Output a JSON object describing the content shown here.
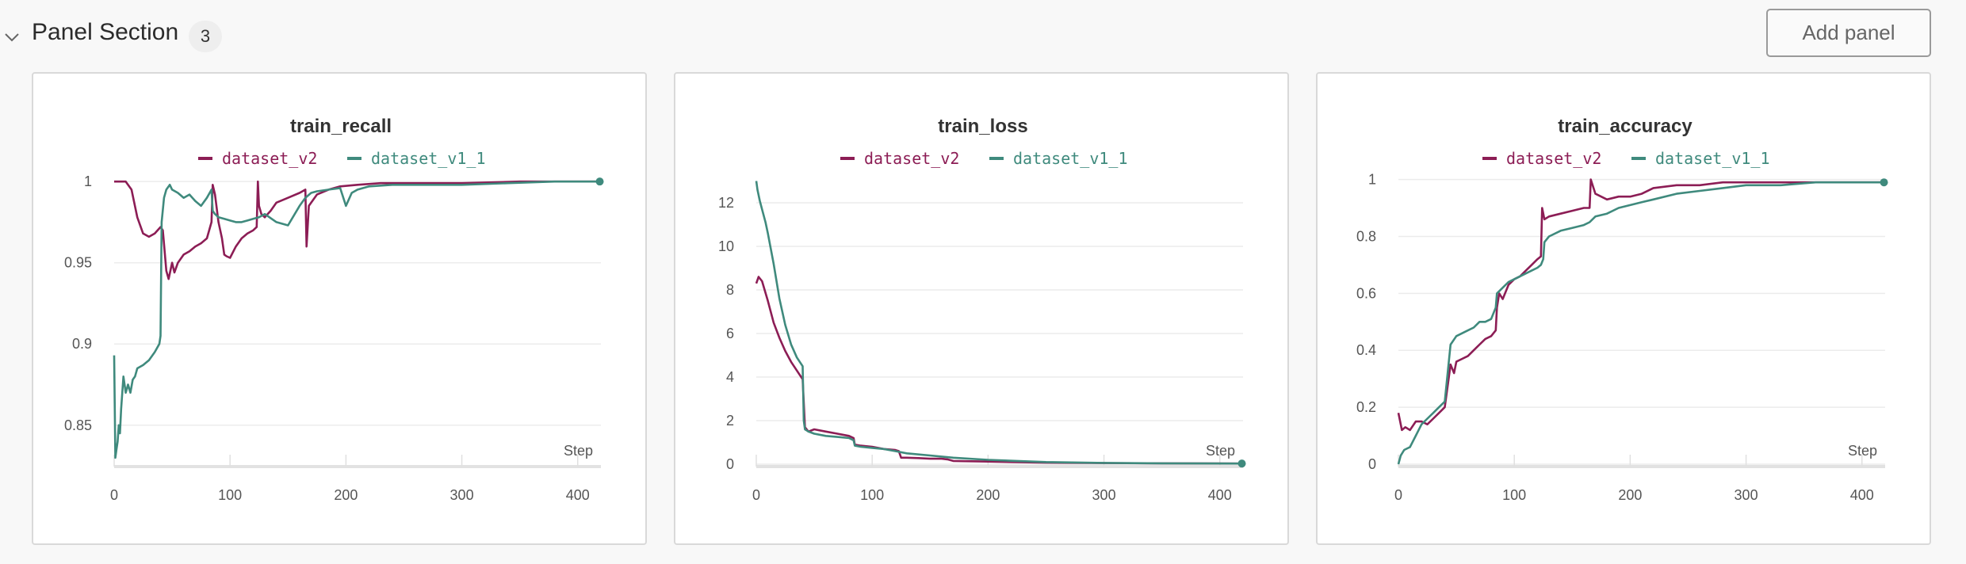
{
  "section": {
    "title": "Panel Section",
    "count": "3",
    "add_panel_label": "Add panel"
  },
  "colors": {
    "dataset_v2": "#8c1d55",
    "dataset_v1_1": "#3f8a7d"
  },
  "chart_data": [
    {
      "type": "line",
      "title": "train_recall",
      "xlabel": "Step",
      "xlim": [
        0,
        420
      ],
      "ylim": [
        0.826,
        1.003
      ],
      "x_ticks": [
        0,
        100,
        200,
        300,
        400
      ],
      "y_ticks": [
        0.85,
        0.9,
        0.95,
        1
      ],
      "y_tick_labels": [
        "0.85",
        "0.9",
        "0.95",
        "1"
      ],
      "grid": true,
      "legend": "top-center",
      "series": [
        {
          "name": "dataset_v2",
          "color": "#8c1d55",
          "x": [
            0,
            10,
            15,
            20,
            25,
            30,
            35,
            40,
            42,
            45,
            47,
            50,
            52,
            55,
            60,
            65,
            70,
            75,
            80,
            84,
            85,
            87,
            90,
            93,
            95,
            97,
            100,
            105,
            110,
            115,
            120,
            123,
            124,
            125,
            127,
            130,
            135,
            140,
            150,
            160,
            165,
            166,
            168,
            175,
            185,
            195,
            210,
            230,
            260,
            300,
            350,
            419
          ],
          "y": [
            1.0,
            1.0,
            0.995,
            0.978,
            0.968,
            0.966,
            0.968,
            0.972,
            0.97,
            0.945,
            0.94,
            0.95,
            0.944,
            0.95,
            0.955,
            0.957,
            0.96,
            0.962,
            0.965,
            0.975,
            0.998,
            0.992,
            0.975,
            0.965,
            0.955,
            0.954,
            0.953,
            0.96,
            0.965,
            0.968,
            0.97,
            0.972,
            1.0,
            0.985,
            0.98,
            0.978,
            0.982,
            0.987,
            0.99,
            0.993,
            0.995,
            0.96,
            0.985,
            0.992,
            0.995,
            0.997,
            0.998,
            0.999,
            0.999,
            0.999,
            1.0,
            1.0
          ]
        },
        {
          "name": "dataset_v1_1",
          "color": "#3f8a7d",
          "x": [
            0,
            1,
            2,
            3,
            4,
            5,
            6,
            8,
            10,
            12,
            14,
            16,
            18,
            20,
            25,
            30,
            35,
            39,
            40,
            41,
            43,
            45,
            48,
            50,
            55,
            60,
            65,
            70,
            75,
            80,
            84,
            85,
            87,
            90,
            95,
            100,
            105,
            110,
            115,
            120,
            125,
            130,
            140,
            150,
            160,
            165,
            170,
            175,
            185,
            195,
            200,
            205,
            210,
            220,
            240,
            260,
            300,
            340,
            380,
            419
          ],
          "y": [
            0.893,
            0.83,
            0.835,
            0.84,
            0.85,
            0.845,
            0.86,
            0.88,
            0.87,
            0.875,
            0.87,
            0.878,
            0.88,
            0.885,
            0.887,
            0.89,
            0.895,
            0.9,
            0.905,
            0.975,
            0.99,
            0.995,
            0.998,
            0.995,
            0.993,
            0.99,
            0.992,
            0.988,
            0.985,
            0.99,
            0.995,
            0.982,
            0.98,
            0.978,
            0.977,
            0.976,
            0.975,
            0.975,
            0.976,
            0.977,
            0.978,
            0.98,
            0.975,
            0.973,
            0.985,
            0.99,
            0.993,
            0.994,
            0.995,
            0.996,
            0.985,
            0.993,
            0.995,
            0.997,
            0.998,
            0.998,
            0.998,
            0.999,
            1.0,
            1.0
          ]
        }
      ]
    },
    {
      "type": "line",
      "title": "train_loss",
      "xlabel": "Step",
      "xlim": [
        0,
        420
      ],
      "ylim": [
        0,
        13.2
      ],
      "x_ticks": [
        0,
        100,
        200,
        300,
        400
      ],
      "y_ticks": [
        0,
        2,
        4,
        6,
        8,
        10,
        12
      ],
      "y_tick_labels": [
        "0",
        "2",
        "4",
        "6",
        "8",
        "10",
        "12"
      ],
      "grid": true,
      "legend": "top-center",
      "series": [
        {
          "name": "dataset_v2",
          "color": "#8c1d55",
          "x": [
            0,
            2,
            5,
            10,
            15,
            20,
            25,
            30,
            35,
            40,
            42,
            45,
            50,
            60,
            70,
            80,
            84,
            85,
            90,
            100,
            110,
            120,
            123,
            125,
            130,
            140,
            150,
            160,
            165,
            170,
            200,
            250,
            300,
            350,
            419
          ],
          "y": [
            8.3,
            8.6,
            8.4,
            7.5,
            6.5,
            5.8,
            5.2,
            4.7,
            4.3,
            3.9,
            1.7,
            1.5,
            1.6,
            1.5,
            1.4,
            1.3,
            1.2,
            0.9,
            0.85,
            0.8,
            0.7,
            0.65,
            0.6,
            0.3,
            0.3,
            0.28,
            0.25,
            0.25,
            0.22,
            0.15,
            0.12,
            0.07,
            0.05,
            0.04,
            0.03
          ]
        },
        {
          "name": "dataset_v1_1",
          "color": "#3f8a7d",
          "x": [
            0,
            1,
            3,
            5,
            8,
            10,
            15,
            20,
            25,
            30,
            35,
            40,
            41,
            42,
            45,
            50,
            60,
            70,
            80,
            84,
            85,
            90,
            100,
            110,
            120,
            130,
            150,
            170,
            200,
            250,
            300,
            350,
            419
          ],
          "y": [
            13.0,
            12.6,
            12.1,
            11.7,
            11.1,
            10.6,
            9.2,
            7.6,
            6.4,
            5.5,
            4.9,
            4.5,
            2.0,
            1.6,
            1.5,
            1.4,
            1.3,
            1.25,
            1.2,
            1.1,
            0.85,
            0.8,
            0.75,
            0.7,
            0.6,
            0.5,
            0.4,
            0.3,
            0.2,
            0.1,
            0.06,
            0.04,
            0.03
          ]
        }
      ]
    },
    {
      "type": "line",
      "title": "train_accuracy",
      "xlabel": "Step",
      "xlim": [
        0,
        420
      ],
      "ylim": [
        0,
        1.01
      ],
      "x_ticks": [
        0,
        100,
        200,
        300,
        400
      ],
      "y_ticks": [
        0,
        0.2,
        0.4,
        0.6,
        0.8,
        1
      ],
      "y_tick_labels": [
        "0",
        "0.2",
        "0.4",
        "0.6",
        "0.8",
        "1"
      ],
      "grid": true,
      "legend": "top-center",
      "series": [
        {
          "name": "dataset_v2",
          "color": "#8c1d55",
          "x": [
            0,
            3,
            6,
            10,
            15,
            20,
            25,
            30,
            35,
            40,
            45,
            48,
            50,
            55,
            60,
            65,
            70,
            75,
            80,
            84,
            85,
            87,
            90,
            95,
            100,
            105,
            110,
            115,
            120,
            123,
            124,
            126,
            130,
            140,
            150,
            160,
            165,
            166,
            170,
            180,
            190,
            200,
            210,
            220,
            240,
            260,
            280,
            300,
            330,
            360,
            390,
            419
          ],
          "y": [
            0.18,
            0.12,
            0.13,
            0.12,
            0.15,
            0.15,
            0.14,
            0.16,
            0.18,
            0.2,
            0.35,
            0.32,
            0.36,
            0.37,
            0.38,
            0.4,
            0.42,
            0.44,
            0.45,
            0.47,
            0.55,
            0.6,
            0.58,
            0.63,
            0.65,
            0.66,
            0.68,
            0.7,
            0.72,
            0.73,
            0.9,
            0.86,
            0.87,
            0.88,
            0.89,
            0.9,
            0.9,
            1.0,
            0.95,
            0.93,
            0.94,
            0.94,
            0.95,
            0.97,
            0.98,
            0.98,
            0.99,
            0.99,
            0.99,
            0.99,
            0.99,
            0.99
          ]
        },
        {
          "name": "dataset_v1_1",
          "color": "#3f8a7d",
          "x": [
            0,
            2,
            5,
            10,
            15,
            20,
            25,
            30,
            35,
            40,
            42,
            45,
            50,
            55,
            60,
            65,
            70,
            75,
            80,
            84,
            85,
            90,
            95,
            100,
            105,
            110,
            115,
            120,
            123,
            125,
            126,
            130,
            140,
            150,
            160,
            165,
            170,
            180,
            190,
            200,
            210,
            220,
            240,
            260,
            280,
            300,
            330,
            360,
            390,
            419
          ],
          "y": [
            0.0,
            0.03,
            0.05,
            0.06,
            0.1,
            0.14,
            0.16,
            0.18,
            0.2,
            0.22,
            0.3,
            0.42,
            0.45,
            0.46,
            0.47,
            0.48,
            0.5,
            0.5,
            0.51,
            0.55,
            0.6,
            0.62,
            0.64,
            0.65,
            0.66,
            0.67,
            0.68,
            0.69,
            0.7,
            0.72,
            0.78,
            0.8,
            0.82,
            0.83,
            0.84,
            0.85,
            0.87,
            0.88,
            0.9,
            0.91,
            0.92,
            0.93,
            0.95,
            0.96,
            0.97,
            0.98,
            0.98,
            0.99,
            0.99,
            0.99
          ]
        }
      ]
    }
  ]
}
